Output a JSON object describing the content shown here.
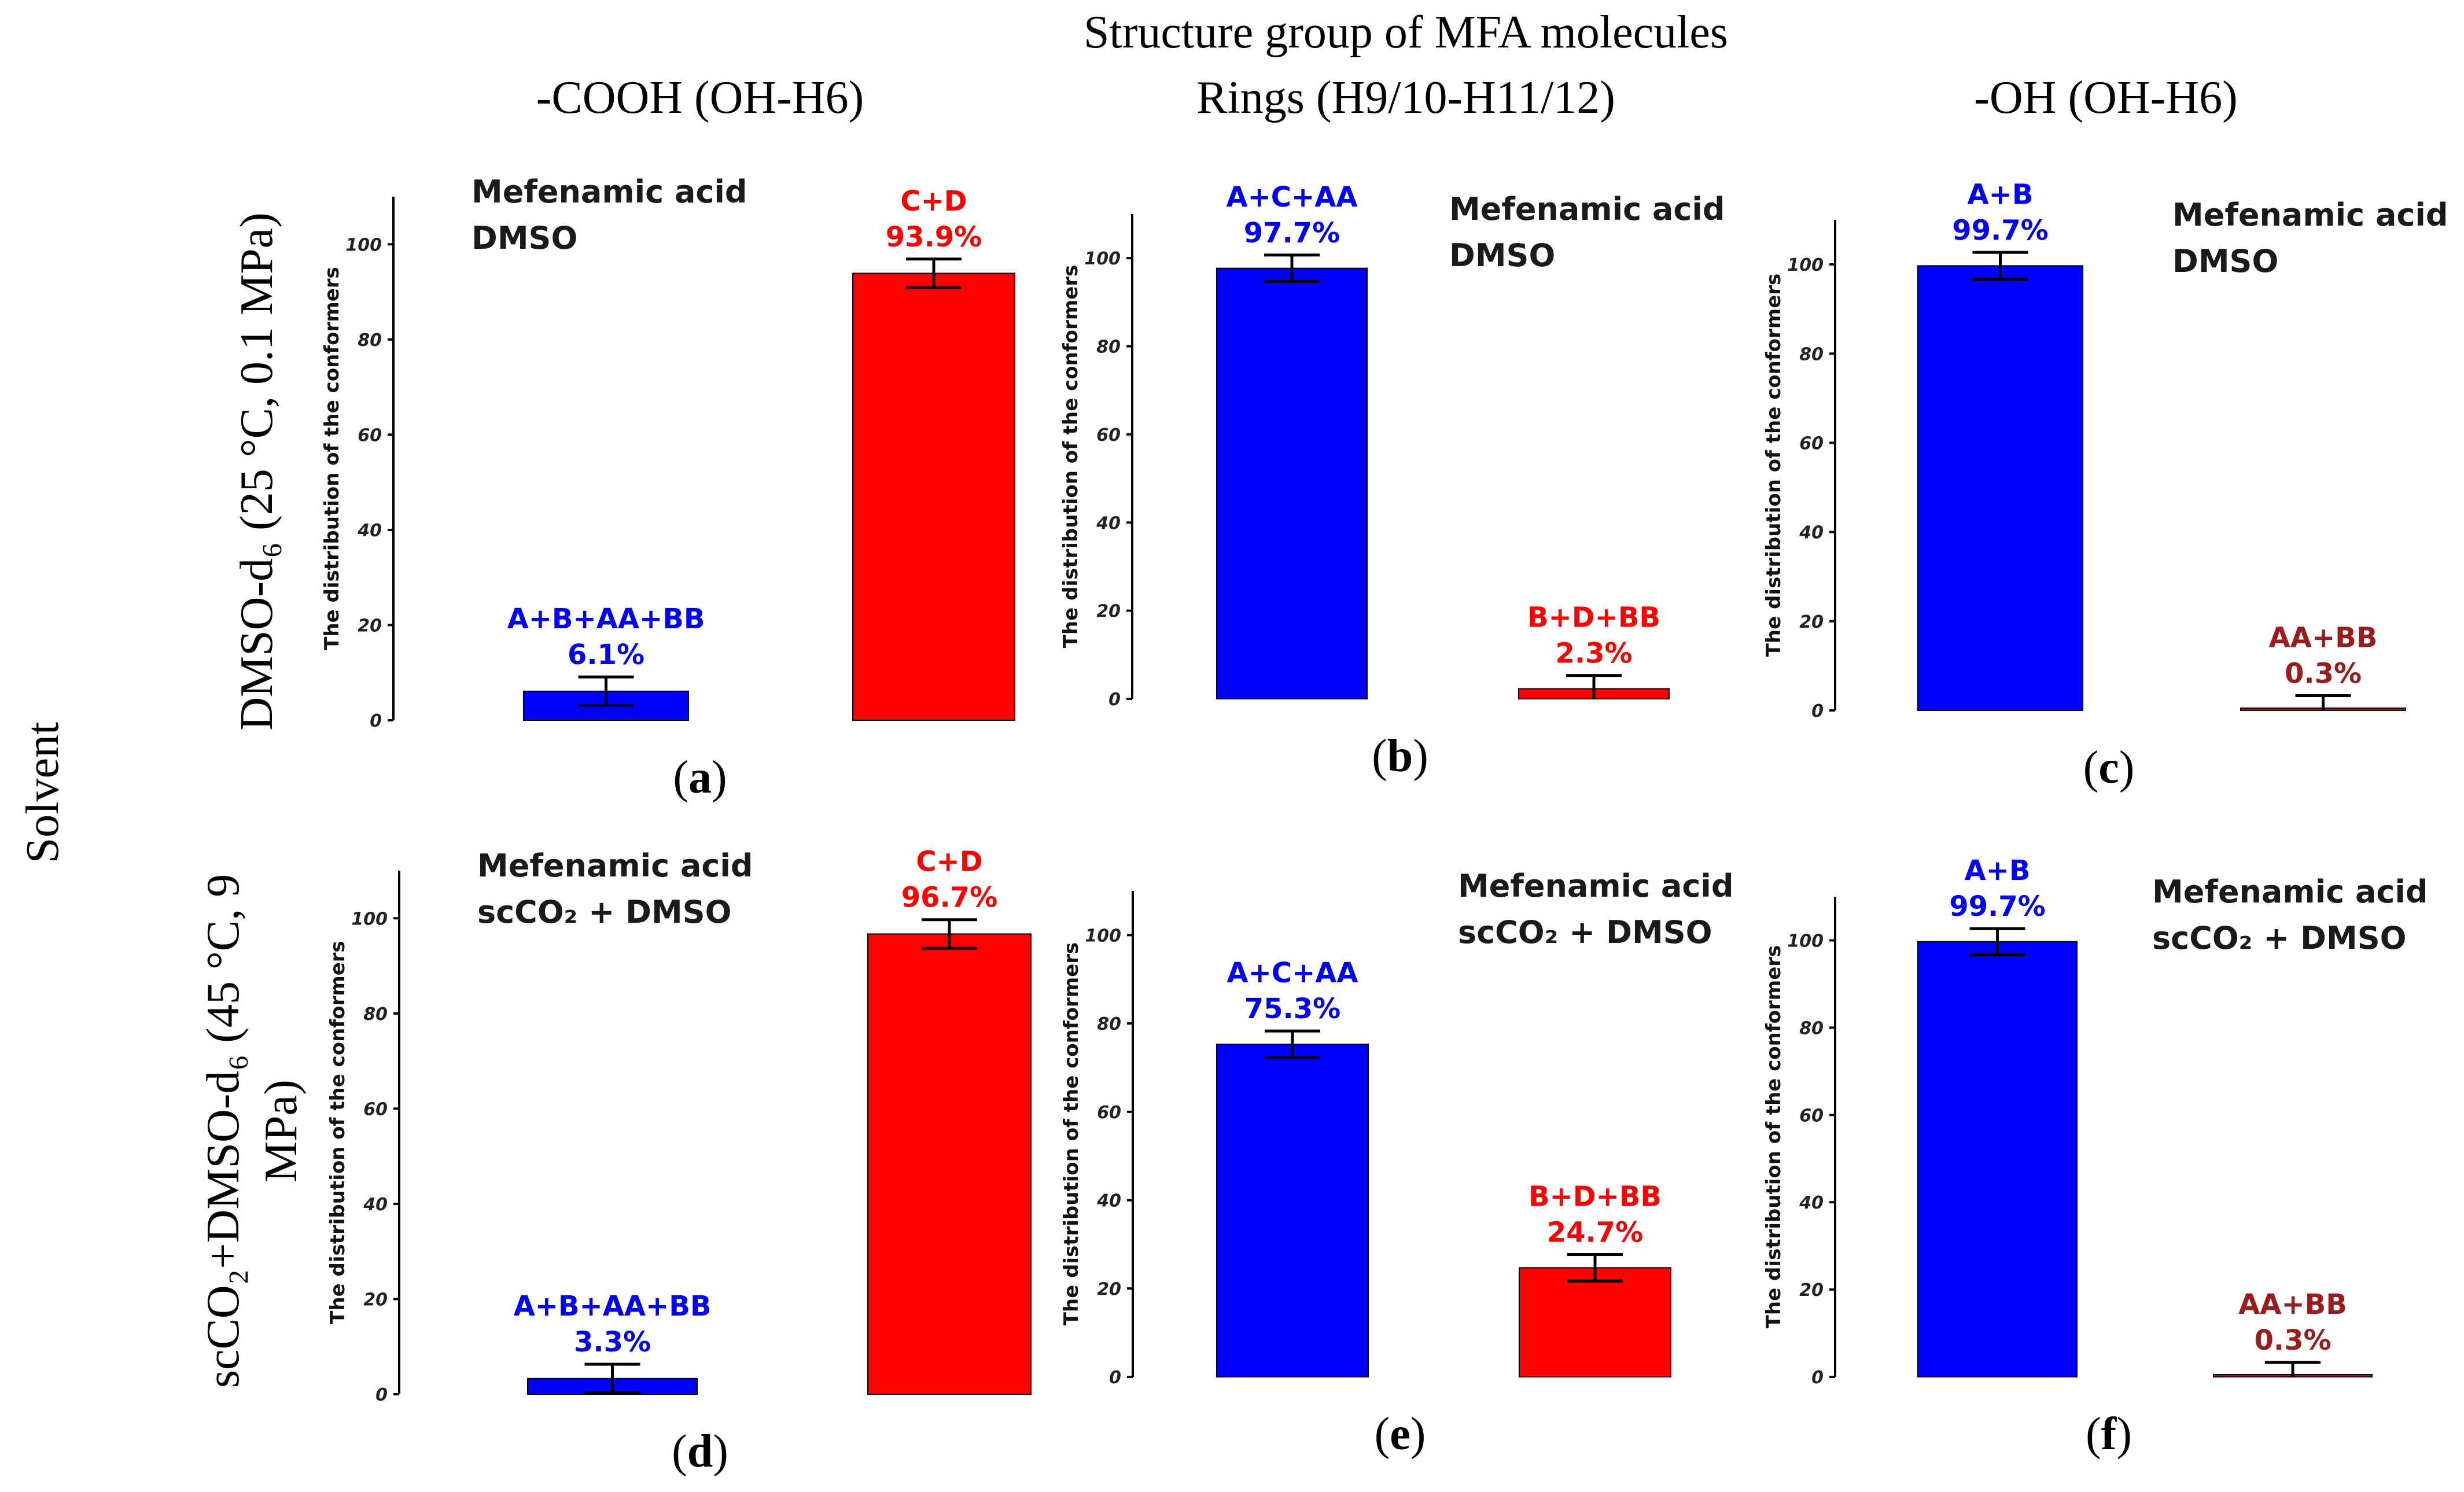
{
  "figure": {
    "title": "Structure group of MFA molecules",
    "row_group_label": "Solvent",
    "column_headers": [
      "-COOH (OH-H6)",
      "Rings (H9/10-H11/12)",
      "-OH (OH-H6)"
    ],
    "row_labels": [
      [
        "DMSO-d₆ (25 °C, 0.1 MPa)"
      ],
      [
        "scCO₂+DMSO-d₆ (45 °C, 9",
        "MPa)"
      ]
    ],
    "colors": {
      "blue": "#0000ff",
      "red": "#ff0000",
      "dark_red": "#9b1c1c",
      "axis": "#000000"
    }
  },
  "chart_data": [
    {
      "type": "bar",
      "panel": "a",
      "panel_label": "(a)",
      "title": "",
      "xlabel": "",
      "ylabel": "The distribution of the conformers",
      "ylim": [
        0,
        110
      ],
      "yticks": [
        0,
        20,
        40,
        60,
        80,
        100
      ],
      "annotation": [
        "Mefenamic acid",
        "DMSO"
      ],
      "annotation_pos": "top-left",
      "categories": [
        "A+B+AA+BB",
        "C+D"
      ],
      "values": [
        6.1,
        93.9
      ],
      "value_labels": [
        "6.1%",
        "93.9%"
      ],
      "error": [
        3,
        3
      ],
      "colors": [
        "#0000ff",
        "#ff0000"
      ]
    },
    {
      "type": "bar",
      "panel": "b",
      "panel_label": "(b)",
      "title": "",
      "xlabel": "",
      "ylabel": "The distribution of the conformers",
      "ylim": [
        0,
        110
      ],
      "yticks": [
        0,
        20,
        40,
        60,
        80,
        100
      ],
      "annotation": [
        "Mefenamic acid",
        "DMSO"
      ],
      "annotation_pos": "top-right",
      "categories": [
        "A+C+AA",
        "B+D+BB"
      ],
      "values": [
        97.7,
        2.3
      ],
      "value_labels": [
        "97.7%",
        "2.3%"
      ],
      "error": [
        3,
        3
      ],
      "colors": [
        "#0000ff",
        "#ff0000"
      ]
    },
    {
      "type": "bar",
      "panel": "c",
      "panel_label": "(c)",
      "title": "",
      "xlabel": "",
      "ylabel": "The distribution of the conformers",
      "ylim": [
        0,
        110
      ],
      "yticks": [
        0,
        20,
        40,
        60,
        80,
        100
      ],
      "annotation": [
        "Mefenamic acid",
        "DMSO"
      ],
      "annotation_pos": "top-right",
      "categories": [
        "A+B",
        "AA+BB"
      ],
      "values": [
        99.7,
        0.3
      ],
      "value_labels": [
        "99.7%",
        "0.3%"
      ],
      "error": [
        3,
        3
      ],
      "colors": [
        "#0000ff",
        "#9b1c1c"
      ]
    },
    {
      "type": "bar",
      "panel": "d",
      "panel_label": "(d)",
      "title": "",
      "xlabel": "",
      "ylabel": "The distribution of the conformers",
      "ylim": [
        0,
        110
      ],
      "yticks": [
        0,
        20,
        40,
        60,
        80,
        100
      ],
      "annotation": [
        "Mefenamic acid",
        "scCO₂ + DMSO"
      ],
      "annotation_pos": "top-left",
      "categories": [
        "A+B+AA+BB",
        "C+D"
      ],
      "values": [
        3.3,
        96.7
      ],
      "value_labels": [
        "3.3%",
        "96.7%"
      ],
      "error": [
        3,
        3
      ],
      "colors": [
        "#0000ff",
        "#ff0000"
      ]
    },
    {
      "type": "bar",
      "panel": "e",
      "panel_label": "(e)",
      "title": "",
      "xlabel": "",
      "ylabel": "The distribution of the conformers",
      "ylim": [
        0,
        110
      ],
      "yticks": [
        0,
        20,
        40,
        60,
        80,
        100
      ],
      "annotation": [
        "Mefenamic acid",
        "scCO₂ + DMSO"
      ],
      "annotation_pos": "top-right",
      "categories": [
        "A+C+AA",
        "B+D+BB"
      ],
      "values": [
        75.3,
        24.7
      ],
      "value_labels": [
        "75.3%",
        "24.7%"
      ],
      "error": [
        3,
        3
      ],
      "colors": [
        "#0000ff",
        "#ff0000"
      ]
    },
    {
      "type": "bar",
      "panel": "f",
      "panel_label": "(f)",
      "title": "",
      "xlabel": "",
      "ylabel": "The distribution of the conformers",
      "ylim": [
        0,
        110
      ],
      "yticks": [
        0,
        20,
        40,
        60,
        80,
        100
      ],
      "annotation": [
        "Mefenamic acid",
        "scCO₂ + DMSO"
      ],
      "annotation_pos": "top-right",
      "categories": [
        "A+B",
        "AA+BB"
      ],
      "values": [
        99.7,
        0.3
      ],
      "value_labels": [
        "99.7%",
        "0.3%"
      ],
      "error": [
        3,
        3
      ],
      "colors": [
        "#0000ff",
        "#9b1c1c"
      ]
    }
  ]
}
